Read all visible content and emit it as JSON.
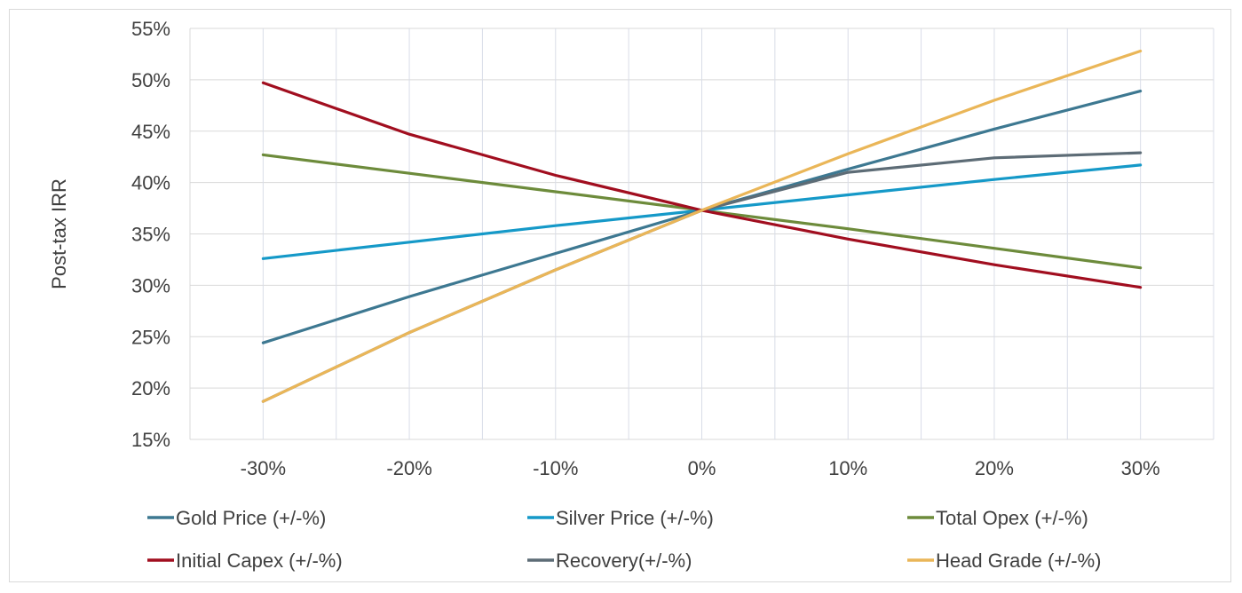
{
  "chart_data": {
    "type": "line",
    "title": "",
    "xlabel": "",
    "ylabel": "Post-tax IRR",
    "x": [
      -0.3,
      -0.2,
      -0.1,
      0.0,
      0.1,
      0.2,
      0.3
    ],
    "x_tick_labels": [
      "-30%",
      "-20%",
      "-10%",
      "0%",
      "10%",
      "20%",
      "30%"
    ],
    "xlim": [
      -0.35,
      0.35
    ],
    "ylim": [
      15,
      55
    ],
    "y_ticks": [
      15,
      20,
      25,
      30,
      35,
      40,
      45,
      50,
      55
    ],
    "y_tick_labels": [
      "15%",
      "20%",
      "25%",
      "30%",
      "35%",
      "40%",
      "45%",
      "50%",
      "55%"
    ],
    "grid": true,
    "legend_position": "bottom",
    "series": [
      {
        "name": "Gold Price (+/-%)",
        "color": "#3d7891",
        "values": [
          24.4,
          28.9,
          33.1,
          37.3,
          41.3,
          45.2,
          48.9
        ]
      },
      {
        "name": "Silver Price (+/-%)",
        "color": "#1599c8",
        "values": [
          32.6,
          34.2,
          35.8,
          37.3,
          38.8,
          40.3,
          41.7
        ]
      },
      {
        "name": "Total Opex (+/-%)",
        "color": "#6d8b3b",
        "values": [
          42.7,
          40.9,
          39.1,
          37.3,
          35.5,
          33.6,
          31.7
        ]
      },
      {
        "name": "Initial Capex (+/-%)",
        "color": "#a10e1f",
        "values": [
          49.7,
          44.7,
          40.7,
          37.3,
          34.5,
          32.0,
          29.8
        ]
      },
      {
        "name": "Recovery(+/-%)",
        "color": "#5d6c76",
        "values": [
          18.7,
          25.4,
          31.5,
          37.3,
          41.0,
          42.4,
          42.9
        ]
      },
      {
        "name": "Head Grade (+/-%)",
        "color": "#eab658",
        "values": [
          18.7,
          25.4,
          31.5,
          37.3,
          42.8,
          48.0,
          52.8
        ]
      }
    ],
    "legend_rows": [
      [
        0,
        1,
        2
      ],
      [
        3,
        4,
        5
      ]
    ]
  }
}
